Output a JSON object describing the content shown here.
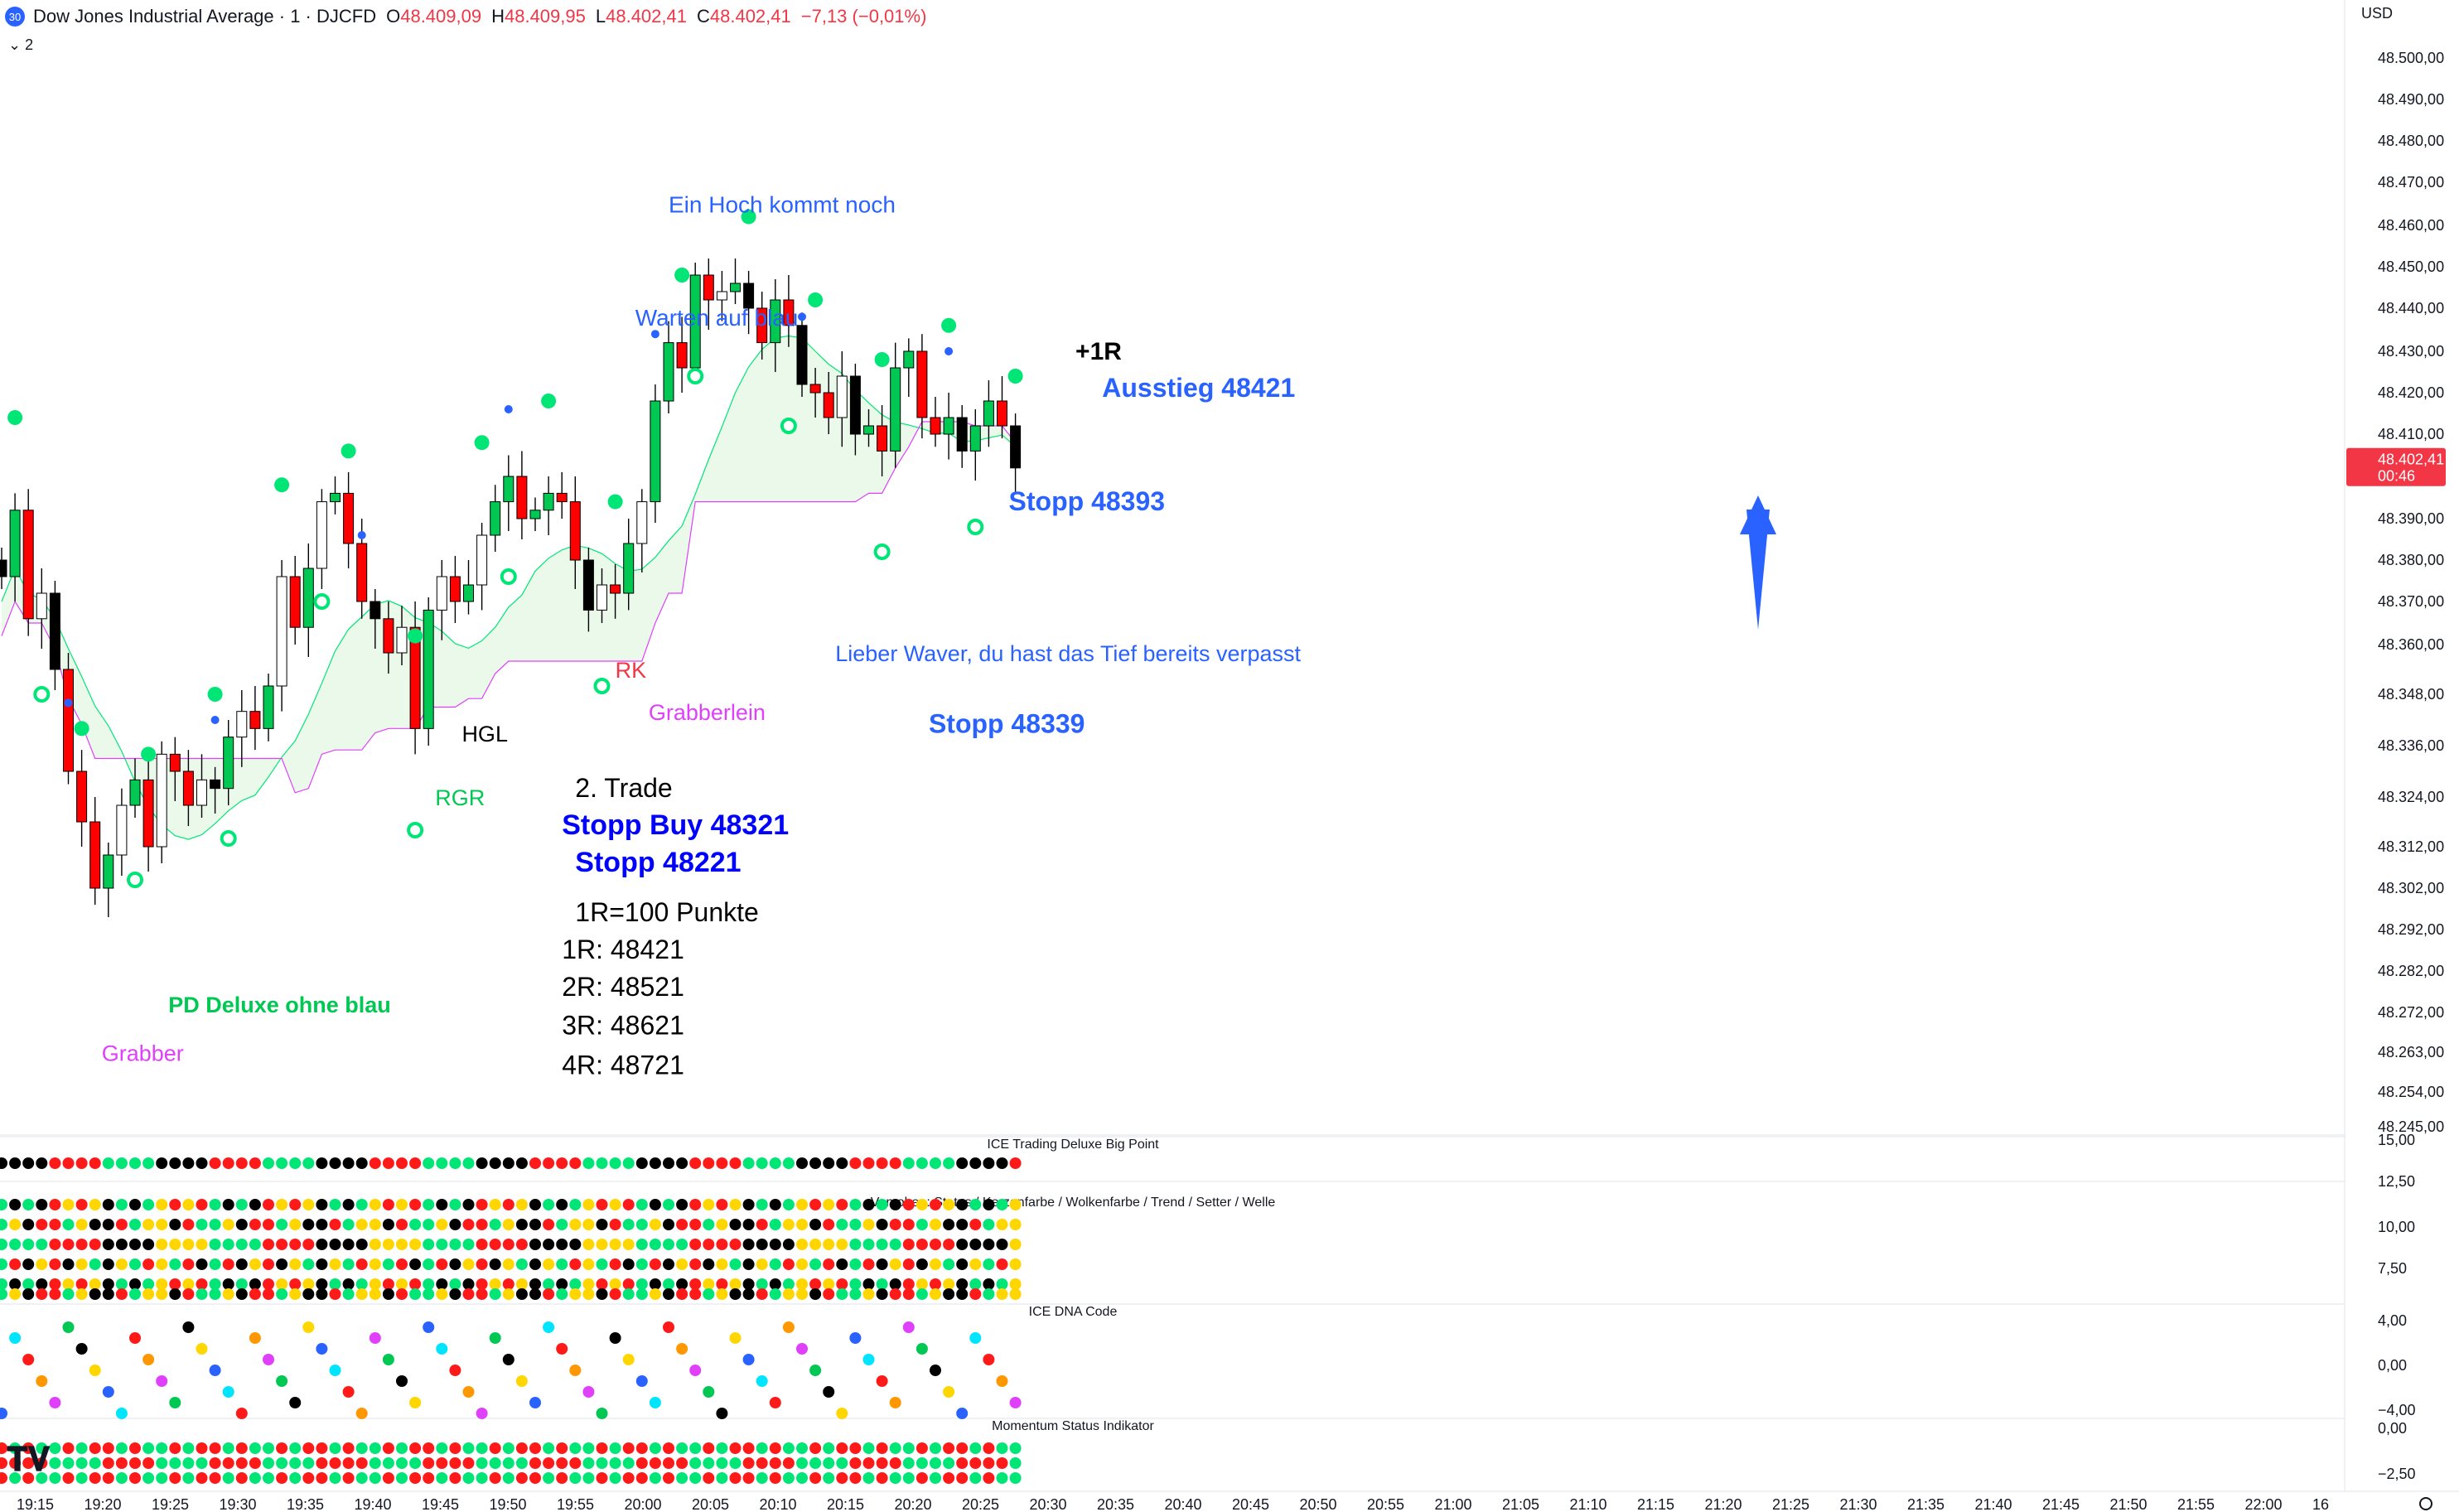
{
  "header": {
    "badge": "30",
    "title": "Dow Jones Industrial Average · 1 · DJCFD",
    "ohlc": [
      {
        "k": "O",
        "v": "48.409,09"
      },
      {
        "k": "H",
        "v": "48.409,95"
      },
      {
        "k": "L",
        "v": "48.402,41"
      },
      {
        "k": "C",
        "v": "48.402,41"
      },
      {
        "k": "",
        "v": "−7,13 (−0,01%)"
      }
    ],
    "indicator_toggle": "⌄ 2",
    "currency": "USD"
  },
  "chart_data": {
    "type": "candlestick",
    "symbol": "DJCFD",
    "timeframe": "1",
    "price_axis_labels": [
      "48.500,00",
      "48.490,00",
      "48.480,00",
      "48.470,00",
      "48.460,00",
      "48.450,00",
      "48.440,00",
      "48.430,00",
      "48.420,00",
      "48.410,00",
      "48.390,00",
      "48.380,00",
      "48.370,00",
      "48.360,00",
      "48.348,00",
      "48.336,00",
      "48.324,00",
      "48.312,00",
      "48.302,00",
      "48.292,00",
      "48.282,00",
      "48.272,00",
      "48.263,00",
      "48.254,00",
      "48.245,00"
    ],
    "price_axis_prices": [
      48500,
      48490,
      48480,
      48470,
      48460,
      48450,
      48440,
      48430,
      48420,
      48410,
      48390,
      48380,
      48370,
      48360,
      48348,
      48336,
      48324,
      48312,
      48302,
      48292,
      48282,
      48272,
      48263,
      48254,
      48245
    ],
    "last_price_label": "48.402,41",
    "last_price": 48402.41,
    "countdown": "00:46",
    "time_labels": [
      "19:15",
      "19:20",
      "19:25",
      "19:30",
      "19:35",
      "19:40",
      "19:45",
      "19:50",
      "19:55",
      "20:00",
      "20:05",
      "20:10",
      "20:15",
      "20:20",
      "20:25",
      "20:30",
      "20:35",
      "20:40",
      "20:45",
      "20:50",
      "20:55",
      "21:00",
      "21:05",
      "21:10",
      "21:15",
      "21:20",
      "21:25",
      "21:30",
      "21:35",
      "21:40",
      "21:45",
      "21:50",
      "21:55",
      "22:00",
      "16"
    ],
    "closes": [
      48376,
      48392,
      48366,
      48372,
      48354,
      48330,
      48318,
      48302,
      48310,
      48322,
      48328,
      48312,
      48334,
      48330,
      48322,
      48328,
      48326,
      48338,
      48344,
      48340,
      48350,
      48376,
      48364,
      48378,
      48394,
      48396,
      48384,
      48370,
      48366,
      48358,
      48364,
      48340,
      48368,
      48376,
      48370,
      48374,
      48386,
      48394,
      48400,
      48390,
      48392,
      48396,
      48394,
      48380,
      48368,
      48374,
      48372,
      48384,
      48394,
      48418,
      48432,
      48426,
      48448,
      48442,
      48444,
      48446,
      48440,
      48432,
      48442,
      48436,
      48422,
      48420,
      48414,
      48424,
      48410,
      48412,
      48406,
      48426,
      48430,
      48414,
      48410,
      48414,
      48406,
      48412,
      48418,
      48412,
      48402
    ],
    "bullish_candle_color": "#00c853",
    "bearish_candle_color": "#ff0000",
    "neutral_candle_color": "#ffffff",
    "cloud_fill_bull": "#e8f8e8",
    "cloud_fill_bear": "#fbe3f3",
    "annotations": [
      {
        "text": "Ein Hoch kommt noch",
        "color": "#2962ff",
        "t": 50,
        "price": 48463
      },
      {
        "text": "Warten auf blau",
        "color": "#2962ff",
        "t": 47.5,
        "price": 48436
      },
      {
        "text": "+1R",
        "color": "#000000",
        "t": 80.5,
        "price": 48428,
        "size": 30,
        "bold": true
      },
      {
        "text": "Ausstieg 48421",
        "color": "#2962ff",
        "t": 82.5,
        "price": 48419,
        "size": 32,
        "bold": true
      },
      {
        "text": "Stopp 48393",
        "color": "#2962ff",
        "t": 75.5,
        "price": 48392,
        "size": 32,
        "bold": true
      },
      {
        "text": "Lieber Waver, du hast das Tief bereits verpasst",
        "color": "#2962ff",
        "t": 62.5,
        "price": 48356,
        "size": 27
      },
      {
        "text": "Stopp 48339",
        "color": "#2962ff",
        "t": 69.5,
        "price": 48339,
        "size": 32,
        "bold": true
      },
      {
        "text": "RK",
        "color": "#f23645",
        "t": 46,
        "price": 48352,
        "size": 27
      },
      {
        "text": "Grabberlein",
        "color": "#e040fb",
        "t": 48.5,
        "price": 48342,
        "size": 27
      },
      {
        "text": "HGL",
        "color": "#000000",
        "t": 34.5,
        "price": 48337,
        "size": 27
      },
      {
        "text": "RGR",
        "color": "#00c853",
        "t": 32.5,
        "price": 48322,
        "size": 27
      },
      {
        "text": "2. Trade",
        "color": "#000000",
        "t": 43,
        "price": 48324,
        "size": 32
      },
      {
        "text": "Stopp Buy 48321",
        "color": "#0000ff",
        "t": 42,
        "price": 48315,
        "size": 34,
        "bold": true
      },
      {
        "text": "Stopp 48221",
        "color": "#0000ff",
        "t": 43,
        "price": 48306,
        "size": 34,
        "bold": true
      },
      {
        "text": "1R=100 Punkte",
        "color": "#000000",
        "t": 43,
        "price": 48294,
        "size": 32
      },
      {
        "text": "1R: 48421",
        "color": "#000000",
        "t": 42,
        "price": 48285,
        "size": 32
      },
      {
        "text": "2R: 48521",
        "color": "#000000",
        "t": 42,
        "price": 48276,
        "size": 32
      },
      {
        "text": "3R: 48621",
        "color": "#000000",
        "t": 42,
        "price": 48267,
        "size": 32
      },
      {
        "text": "4R: 48721",
        "color": "#000000",
        "t": 42,
        "price": 48258,
        "size": 32
      },
      {
        "text": "PD Deluxe ohne blau",
        "color": "#00c853",
        "t": 12.5,
        "price": 48272,
        "size": 27,
        "bold": true
      },
      {
        "text": "Grabber",
        "color": "#e040fb",
        "t": 7.5,
        "price": 48261,
        "size": 27
      }
    ],
    "panes": [
      {
        "title": "ICE Trading Deluxe Big Point",
        "axis": [
          "15,00",
          "12,50"
        ]
      },
      {
        "title": "Von oben: Status / Kerzenfarbe / Wolkenfarbe / Trend / Setter / Welle",
        "axis": [
          "10,00",
          "7,50"
        ]
      },
      {
        "title": "ICE DNA Code",
        "axis": [
          "4,00",
          "0,00",
          "−4,00"
        ]
      },
      {
        "title": "Momentum Status Indikator",
        "axis": [
          "0,00",
          "−2,50"
        ]
      }
    ]
  }
}
